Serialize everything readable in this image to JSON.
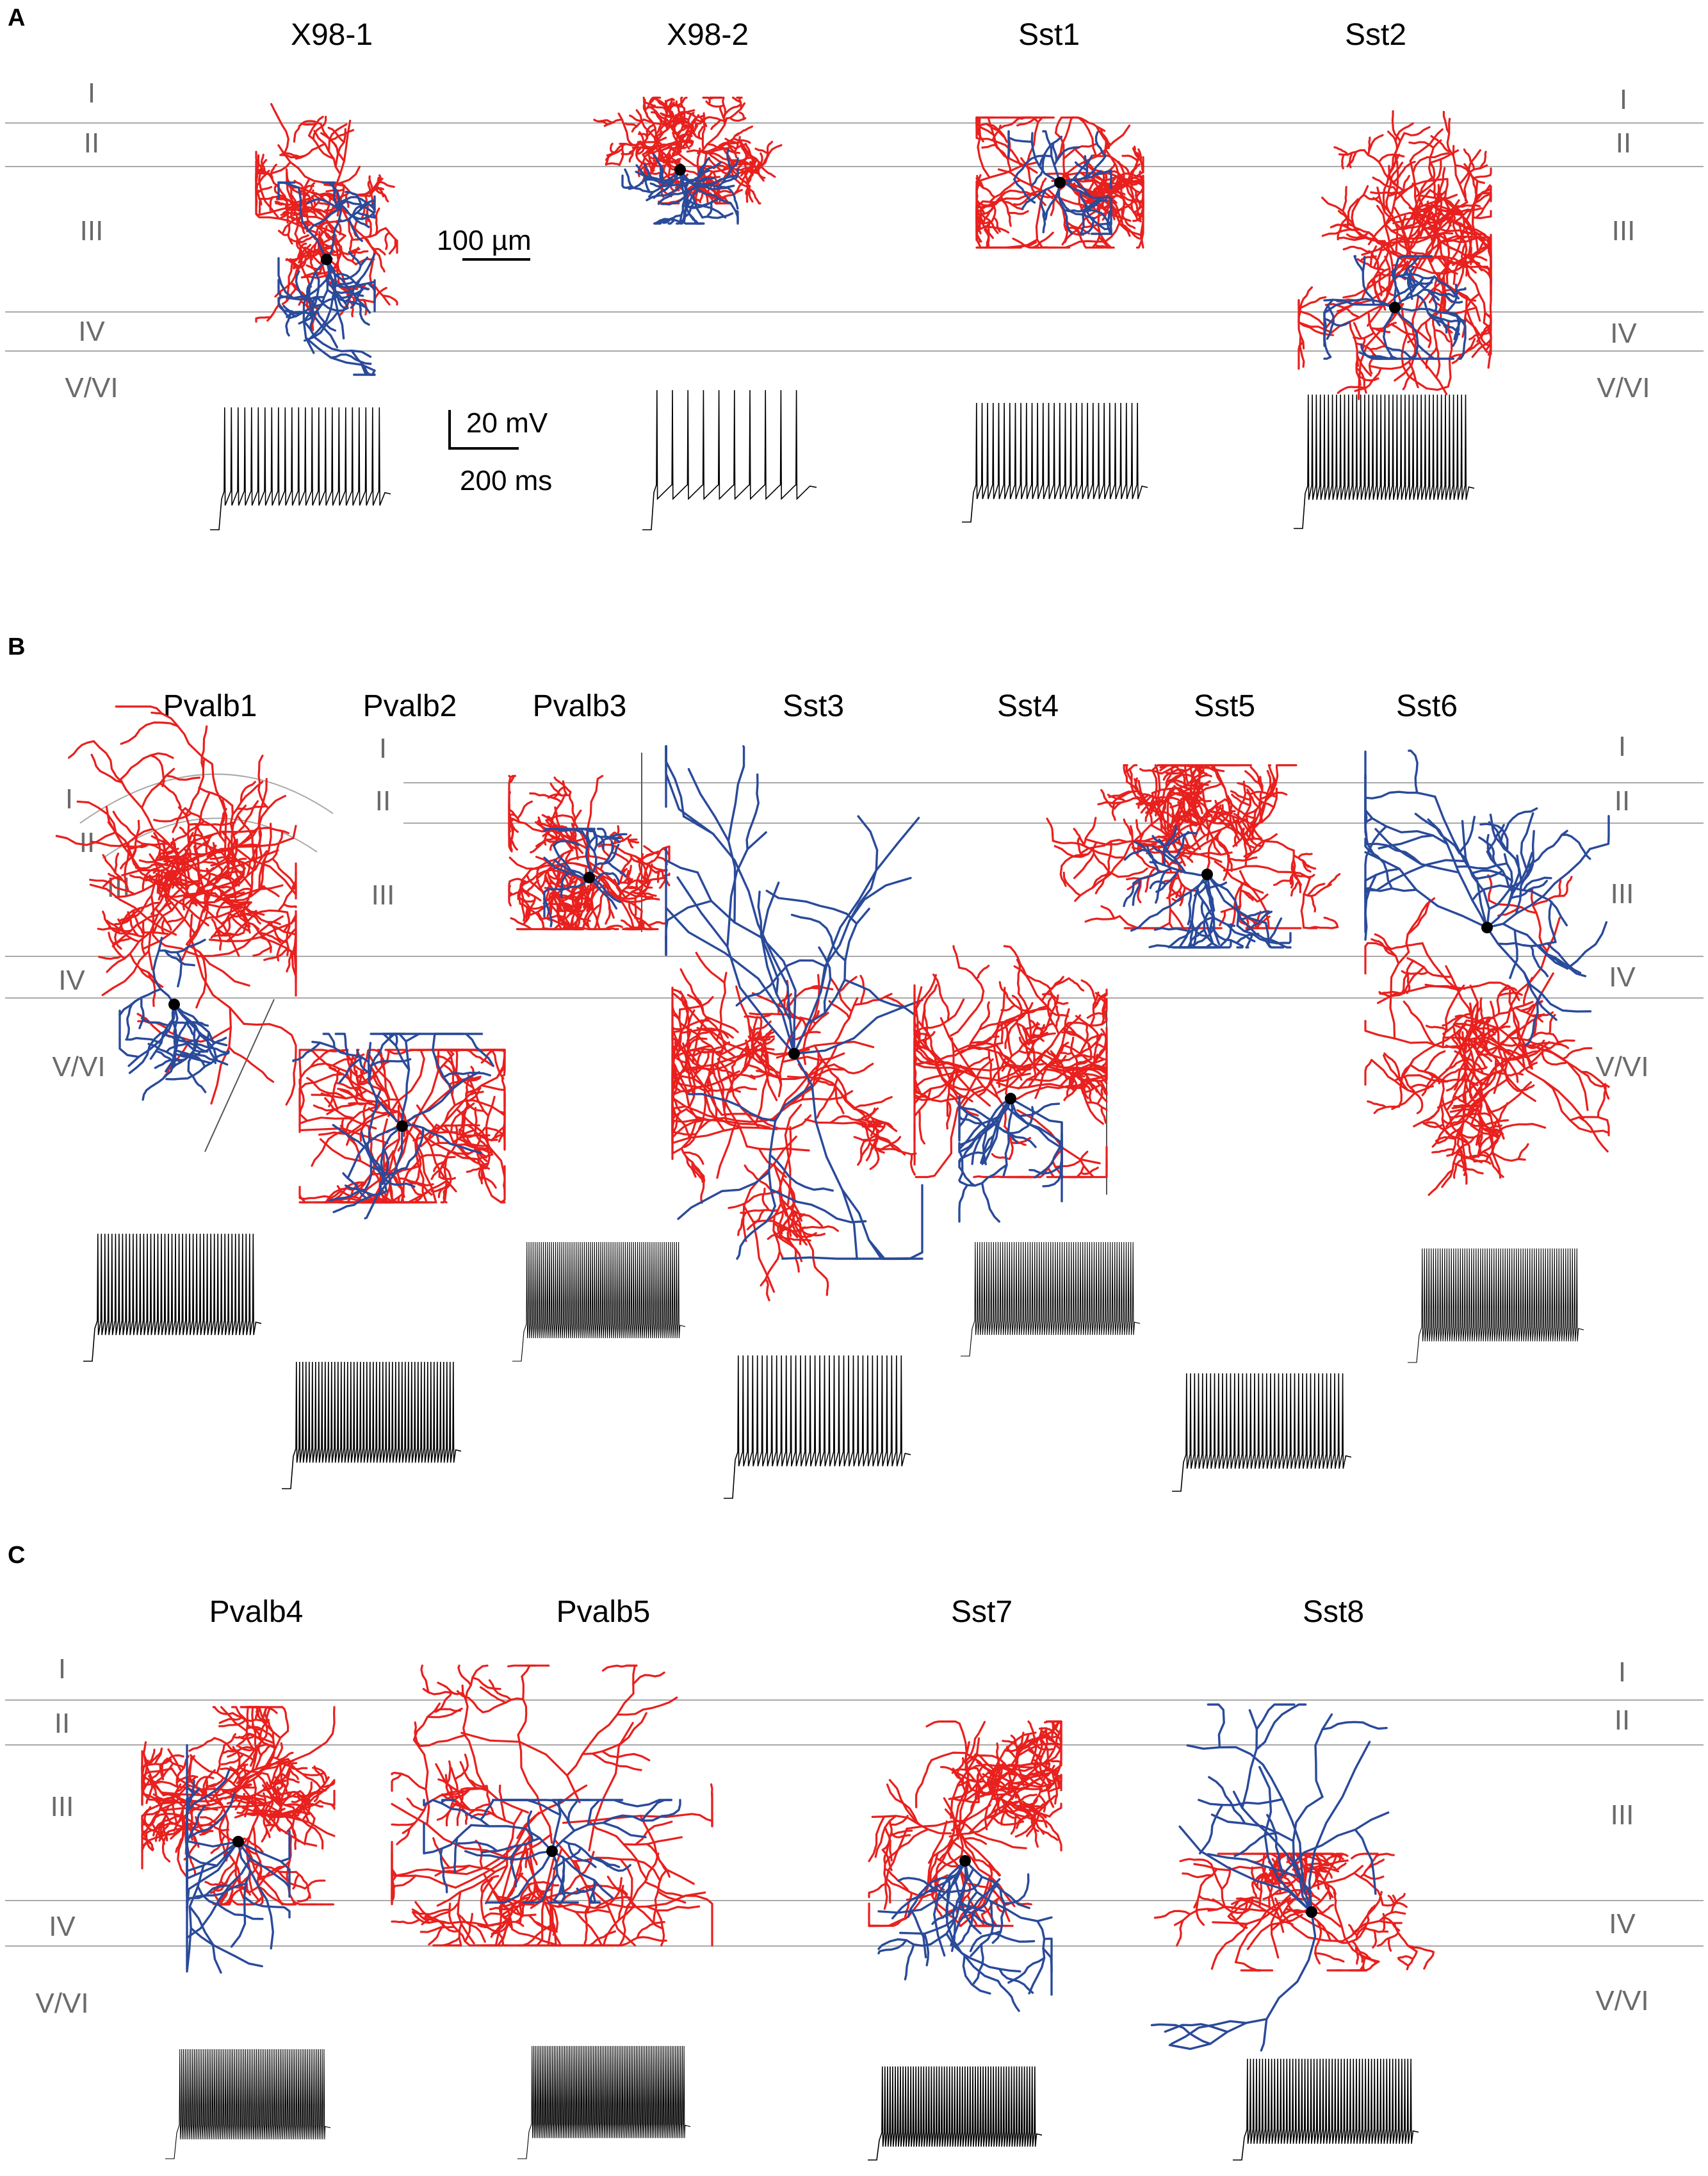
{
  "colors": {
    "axon": "#e8201e",
    "dendrite": "#2a4a9a",
    "soma": "#000000",
    "trace": "#000000",
    "boundary": "#a9a9a9",
    "layer_label": "#6b6b6b"
  },
  "panels": [
    {
      "letter": "A",
      "left_layers": [
        "I",
        "II",
        "III",
        "IV",
        "V/VI"
      ],
      "right_layers": [
        "I",
        "II",
        "III",
        "IV",
        "V/VI"
      ],
      "cells": [
        {
          "name": "X98-1",
          "spikes": 24
        },
        {
          "name": "X98-2",
          "spikes": 10
        },
        {
          "name": "Sst1",
          "spikes": 30
        },
        {
          "name": "Sst2",
          "spikes": 40
        }
      ],
      "scale_bars": {
        "length_label": "100 µm",
        "voltage_label": "20 mV",
        "time_label": "200 ms"
      }
    },
    {
      "letter": "B",
      "left_layers": [
        "I",
        "II",
        "III",
        "I",
        "II",
        "III",
        "IV",
        "V/VI"
      ],
      "right_layers": [
        "I",
        "II",
        "III",
        "IV",
        "V/VI"
      ],
      "cells": [
        {
          "name": "Pvalb1",
          "spikes": 45
        },
        {
          "name": "Pvalb2",
          "spikes": 50
        },
        {
          "name": "Pvalb3",
          "spikes": 75
        },
        {
          "name": "Sst3",
          "spikes": 35
        },
        {
          "name": "Sst4",
          "spikes": 70
        },
        {
          "name": "Sst5",
          "spikes": 40
        },
        {
          "name": "Sst6",
          "spikes": 70
        }
      ]
    },
    {
      "letter": "C",
      "left_layers": [
        "I",
        "II",
        "III",
        "IV",
        "V/VI"
      ],
      "right_layers": [
        "I",
        "II",
        "III",
        "IV",
        "V/VI"
      ],
      "cells": [
        {
          "name": "Pvalb4",
          "spikes": 80
        },
        {
          "name": "Pvalb5",
          "spikes": 90
        },
        {
          "name": "Sst7",
          "spikes": 60
        },
        {
          "name": "Sst8",
          "spikes": 55
        }
      ]
    }
  ]
}
